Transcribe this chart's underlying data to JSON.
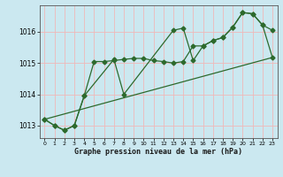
{
  "xlabel": "Graphe pression niveau de la mer (hPa)",
  "bg_color": "#cbe8f0",
  "grid_color": "#f0b8b8",
  "line_color": "#2d6a2d",
  "marker": "D",
  "markersize": 2.5,
  "linewidth": 0.9,
  "ylim": [
    1012.6,
    1016.85
  ],
  "xlim": [
    -0.5,
    23.5
  ],
  "yticks": [
    1013,
    1014,
    1015,
    1016
  ],
  "xticks": [
    0,
    1,
    2,
    3,
    4,
    5,
    6,
    7,
    8,
    9,
    10,
    11,
    12,
    13,
    14,
    15,
    16,
    17,
    18,
    19,
    20,
    21,
    22,
    23
  ],
  "series1_x": [
    0,
    1,
    2,
    3,
    4,
    5,
    6,
    7,
    8,
    9,
    10,
    11,
    12,
    13,
    14,
    15,
    16,
    17,
    18,
    19,
    20,
    21,
    22,
    23
  ],
  "series1_y": [
    1013.2,
    1013.0,
    1012.85,
    1013.0,
    1013.95,
    1015.05,
    1015.05,
    1015.08,
    1015.12,
    1015.15,
    1015.15,
    1015.08,
    1015.05,
    1015.0,
    1015.05,
    1015.55,
    1015.55,
    1015.72,
    1015.82,
    1016.15,
    1016.62,
    1016.58,
    1016.22,
    1016.05
  ],
  "series2_x": [
    0,
    1,
    2,
    3,
    4,
    7,
    8,
    13,
    14,
    15,
    16,
    17,
    18,
    19,
    20,
    21,
    22,
    23
  ],
  "series2_y": [
    1013.2,
    1013.0,
    1012.85,
    1013.0,
    1013.95,
    1015.12,
    1014.0,
    1016.05,
    1016.12,
    1015.08,
    1015.55,
    1015.72,
    1015.82,
    1016.15,
    1016.62,
    1016.58,
    1016.22,
    1015.18
  ],
  "series3_x": [
    0,
    23
  ],
  "series3_y": [
    1013.2,
    1015.18
  ]
}
